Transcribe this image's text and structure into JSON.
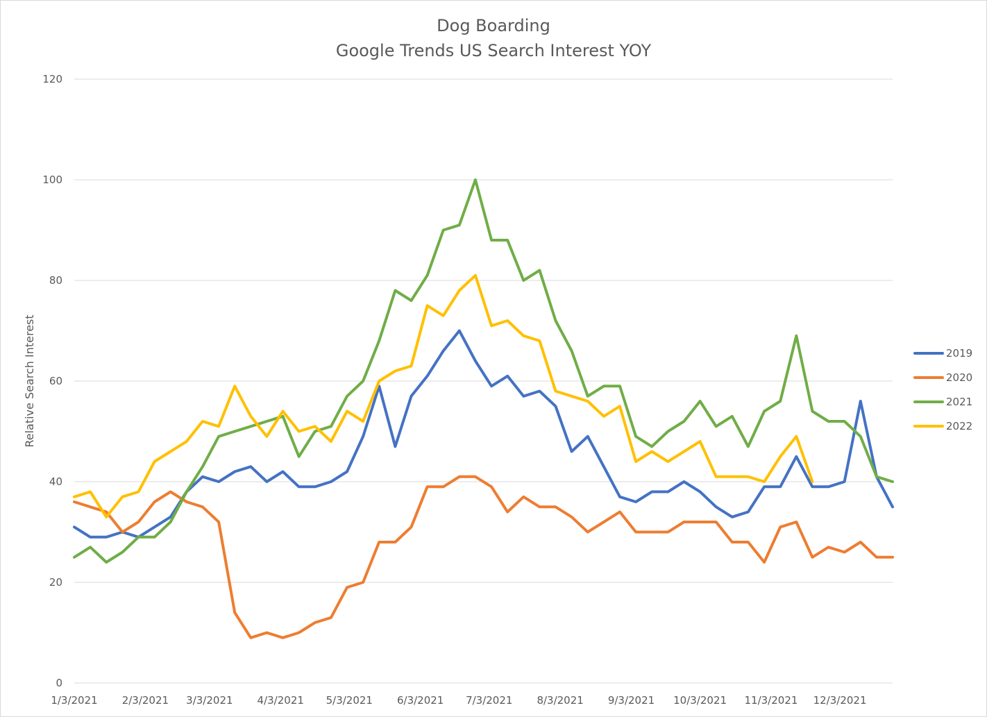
{
  "chart_data": {
    "type": "line",
    "title": "Dog Boarding",
    "subtitle": "Google Trends US Search Interest YOY",
    "xlabel": "",
    "ylabel": "Relative Search Interest",
    "ylim": [
      0,
      120
    ],
    "yticks": [
      0,
      20,
      40,
      60,
      80,
      100,
      120
    ],
    "x_tick_labels": [
      "1/3/2021",
      "2/3/2021",
      "3/3/2021",
      "4/3/2021",
      "5/3/2021",
      "6/3/2021",
      "7/3/2021",
      "8/3/2021",
      "9/3/2021",
      "10/3/2021",
      "11/3/2021",
      "12/3/2021"
    ],
    "x_tick_dates": [
      "2021-01-03",
      "2021-02-03",
      "2021-03-03",
      "2021-04-03",
      "2021-05-03",
      "2021-06-03",
      "2021-07-03",
      "2021-08-03",
      "2021-09-03",
      "2021-10-03",
      "2021-11-03",
      "2021-12-03"
    ],
    "x_start_date": "2021-01-03",
    "x_end_date": "2021-12-26",
    "x_step_days": 7,
    "grid": true,
    "legend_position": "right",
    "series": [
      {
        "name": "2019",
        "color": "#4472C4",
        "values": [
          31,
          29,
          29,
          30,
          29,
          31,
          33,
          38,
          41,
          40,
          42,
          43,
          40,
          42,
          39,
          39,
          40,
          42,
          49,
          59,
          47,
          57,
          61,
          66,
          70,
          64,
          59,
          61,
          57,
          58,
          55,
          46,
          49,
          43,
          37,
          36,
          38,
          38,
          40,
          38,
          35,
          33,
          34,
          39,
          39,
          45,
          39,
          39,
          40,
          56,
          41,
          35
        ]
      },
      {
        "name": "2020",
        "color": "#ED7D31",
        "values": [
          36,
          35,
          34,
          30,
          32,
          36,
          38,
          36,
          35,
          32,
          14,
          9,
          10,
          9,
          10,
          12,
          13,
          19,
          20,
          28,
          28,
          31,
          39,
          39,
          41,
          41,
          39,
          34,
          37,
          35,
          35,
          33,
          30,
          32,
          34,
          30,
          30,
          30,
          32,
          32,
          32,
          28,
          28,
          24,
          31,
          32,
          25,
          27,
          26,
          28,
          25,
          25
        ]
      },
      {
        "name": "2021",
        "color": "#70AD47",
        "values": [
          25,
          27,
          24,
          26,
          29,
          29,
          32,
          38,
          43,
          49,
          50,
          51,
          52,
          53,
          45,
          50,
          51,
          57,
          60,
          68,
          78,
          76,
          81,
          90,
          91,
          100,
          88,
          88,
          80,
          82,
          72,
          66,
          57,
          59,
          59,
          49,
          47,
          50,
          52,
          56,
          51,
          53,
          47,
          54,
          56,
          69,
          54,
          52,
          52,
          49,
          41,
          40
        ]
      },
      {
        "name": "2022",
        "color": "#FFC000",
        "values": [
          37,
          38,
          33,
          37,
          38,
          44,
          46,
          48,
          52,
          51,
          59,
          53,
          49,
          54,
          50,
          51,
          48,
          54,
          52,
          60,
          62,
          63,
          75,
          73,
          78,
          81,
          71,
          72,
          69,
          68,
          58,
          57,
          56,
          53,
          55,
          44,
          46,
          44,
          46,
          48,
          41,
          41,
          41,
          40,
          45,
          49,
          40
        ]
      }
    ]
  }
}
